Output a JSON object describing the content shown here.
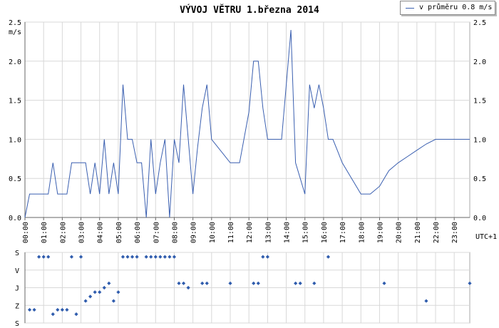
{
  "title": "VÝVOJ VĚTRU  1.března 2014",
  "legend": {
    "label": "v průměru 0.8 m/s",
    "color": "#3a5fb0"
  },
  "colors": {
    "line": "#3a5fb0",
    "marker": "#2f5cad",
    "grid": "#d8d8d8",
    "axis": "#666666"
  },
  "chart_data": [
    {
      "type": "line",
      "title": "VÝVOJ VĚTRU  1.března 2014",
      "ylabel": "m/s",
      "x_unit_label": "UTC+1",
      "x_unit": "hours",
      "xlim": [
        0,
        23.833
      ],
      "ylim": [
        0,
        2.5
      ],
      "yticks": [
        "0.0",
        "0.5",
        "1.0",
        "1.5",
        "2.0",
        "2.5"
      ],
      "xticks": [
        "00:00",
        "01:00",
        "02:00",
        "03:00",
        "04:00",
        "05:00",
        "06:00",
        "07:00",
        "08:00",
        "09:00",
        "10:00",
        "11:00",
        "12:00",
        "13:00",
        "14:00",
        "15:00",
        "16:00",
        "17:00",
        "18:00",
        "19:00",
        "20:00",
        "21:00",
        "22:00",
        "23:00"
      ],
      "grid": true,
      "legend_position": "top-right",
      "series": [
        {
          "name": "v průměru 0.8 m/s",
          "x": [
            0,
            0.25,
            0.5,
            0.75,
            1.0,
            1.25,
            1.5,
            1.75,
            2.0,
            2.25,
            2.5,
            2.75,
            3.0,
            3.25,
            3.5,
            3.75,
            4.0,
            4.25,
            4.5,
            4.75,
            5.0,
            5.25,
            5.5,
            5.75,
            6.0,
            6.25,
            6.5,
            6.75,
            7.0,
            7.25,
            7.5,
            7.75,
            8.0,
            8.25,
            8.5,
            8.75,
            9.0,
            9.25,
            9.5,
            9.75,
            10.0,
            10.5,
            11.0,
            11.5,
            12.0,
            12.25,
            12.5,
            12.75,
            13.0,
            13.25,
            13.5,
            13.75,
            14.0,
            14.25,
            14.5,
            14.75,
            15.0,
            15.25,
            15.5,
            15.75,
            16.0,
            16.25,
            16.5,
            16.75,
            17.0,
            17.5,
            18.0,
            18.5,
            19.0,
            19.25,
            19.5,
            20.0,
            20.5,
            21.0,
            21.5,
            22.0,
            22.5,
            23.0,
            23.5,
            23.833
          ],
          "y": [
            0,
            0.3,
            0.3,
            0.3,
            0.3,
            0.3,
            0.7,
            0.3,
            0.3,
            0.3,
            0.7,
            0.7,
            0.7,
            0.7,
            0.3,
            0.7,
            0.3,
            1.0,
            0.3,
            0.7,
            0.3,
            1.7,
            1.0,
            1.0,
            0.7,
            0.7,
            0,
            1.0,
            0.3,
            0.7,
            1.0,
            0,
            1.0,
            0.7,
            1.7,
            1.0,
            0.3,
            0.9,
            1.4,
            1.7,
            1.0,
            0.85,
            0.7,
            0.7,
            1.35,
            2.0,
            2.0,
            1.4,
            1.0,
            1.0,
            1.0,
            1.0,
            1.7,
            2.4,
            0.7,
            0.5,
            0.3,
            1.7,
            1.4,
            1.7,
            1.4,
            1.0,
            1.0,
            0.85,
            0.7,
            0.5,
            0.3,
            0.3,
            0.4,
            0.5,
            0.6,
            0.7,
            0.78,
            0.86,
            0.94,
            1.0,
            1.0,
            1.0,
            1.0,
            1.0
          ]
        }
      ]
    },
    {
      "type": "scatter",
      "ylabel": "",
      "y_categories": [
        "S",
        "V",
        "J",
        "Z",
        "S"
      ],
      "xlim": [
        0,
        23.833
      ],
      "grid": true,
      "series": [
        {
          "name": "",
          "x": [
            0.25,
            0.5,
            0.75,
            1.0,
            1.25,
            1.5,
            1.75,
            2.0,
            2.25,
            2.5,
            2.75,
            3.0,
            3.25,
            3.5,
            3.75,
            4.0,
            4.25,
            4.5,
            4.75,
            5.0,
            5.25,
            5.5,
            5.75,
            6.0,
            6.5,
            6.75,
            7.0,
            7.25,
            7.5,
            7.75,
            8.0,
            8.25,
            8.5,
            8.75,
            9.5,
            9.75,
            11.0,
            12.25,
            12.5,
            12.75,
            13.0,
            14.5,
            14.75,
            15.5,
            16.25,
            19.25,
            21.5,
            23.833
          ],
          "y": [
            3.25,
            3.25,
            0.25,
            0.25,
            0.25,
            3.5,
            3.25,
            3.25,
            3.25,
            0.25,
            3.5,
            0.25,
            2.75,
            2.5,
            2.25,
            2.25,
            2.0,
            1.75,
            2.75,
            2.25,
            0.25,
            0.25,
            0.25,
            0.25,
            0.25,
            0.25,
            0.25,
            0.25,
            0.25,
            0.25,
            0.25,
            1.75,
            1.75,
            2.0,
            1.75,
            1.75,
            1.75,
            1.75,
            1.75,
            0.25,
            0.25,
            1.75,
            1.75,
            1.75,
            0.25,
            1.75,
            2.75,
            1.75
          ]
        }
      ]
    }
  ]
}
